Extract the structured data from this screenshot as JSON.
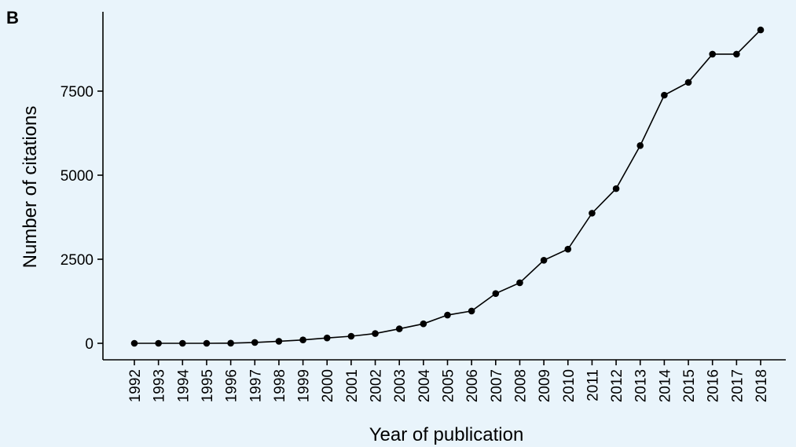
{
  "panel_label": "B",
  "chart_data": {
    "type": "line",
    "title": "",
    "xlabel": "Year of publication",
    "ylabel": "Number of citations",
    "x": [
      1992,
      1993,
      1994,
      1995,
      1996,
      1997,
      1998,
      1999,
      2000,
      2001,
      2002,
      2003,
      2004,
      2005,
      2006,
      2007,
      2008,
      2009,
      2010,
      2011,
      2012,
      2013,
      2014,
      2015,
      2016,
      2017,
      2018
    ],
    "x_tick_labels": [
      "1992",
      "1993",
      "1994",
      "1995",
      "1996",
      "1997",
      "1998",
      "1999",
      "2000",
      "2001",
      "2002",
      "2003",
      "2004",
      "2005",
      "2006",
      "2007",
      "2008",
      "2009",
      "2010",
      "2011",
      "2012",
      "2013",
      "2014",
      "2015",
      "2016",
      "2017",
      "2018"
    ],
    "series": [
      {
        "values": [
          0,
          0,
          0,
          0,
          5,
          25,
          60,
          100,
          160,
          210,
          290,
          430,
          580,
          840,
          960,
          1480,
          1800,
          2470,
          2800,
          3870,
          4600,
          5880,
          7380,
          7760,
          8600,
          8600,
          9320
        ]
      }
    ],
    "ylim": [
      -500,
      9800
    ],
    "y_ticks": [
      0,
      2500,
      5000,
      7500
    ],
    "y_tick_labels": [
      "0",
      "2500",
      "5000",
      "7500"
    ],
    "grid": false,
    "legend": "none",
    "colors": {
      "background": "#e9f4fb",
      "line": "#000000",
      "marker": "#000000"
    }
  }
}
